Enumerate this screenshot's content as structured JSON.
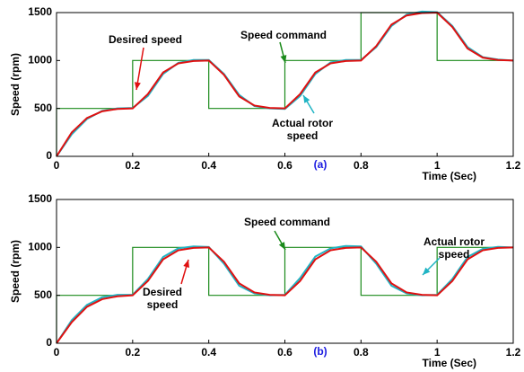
{
  "chart_data": [
    {
      "type": "line",
      "label": "(a)",
      "x_label": "Time (Sec)",
      "y_label": "Speed (rpm)",
      "xlim": [
        0,
        1.2
      ],
      "xticks": [
        0,
        0.2,
        0.4,
        0.6,
        0.8,
        1,
        1.2
      ],
      "ylim": [
        0,
        1500
      ],
      "yticks": [
        0,
        500,
        1000,
        1500
      ],
      "grid": false,
      "series": [
        {
          "name": "Speed command",
          "color": "#1a8a1a",
          "x": [
            0,
            0,
            0.2,
            0.2,
            0.4,
            0.4,
            0.6,
            0.6,
            0.8,
            0.8,
            1,
            1,
            1.2
          ],
          "values": [
            0,
            500,
            500,
            1000,
            1000,
            500,
            500,
            1000,
            1000,
            1500,
            1500,
            1000,
            1000
          ]
        },
        {
          "name": "Desired speed",
          "color": "#e01010",
          "x": [
            0,
            0.04,
            0.08,
            0.12,
            0.16,
            0.2,
            0.24,
            0.28,
            0.32,
            0.36,
            0.4,
            0.44,
            0.48,
            0.52,
            0.56,
            0.6,
            0.64,
            0.68,
            0.72,
            0.76,
            0.8,
            0.84,
            0.88,
            0.92,
            0.96,
            1,
            1.04,
            1.08,
            1.12,
            1.16,
            1.2
          ],
          "values": [
            0,
            250,
            400,
            470,
            495,
            500,
            650,
            875,
            970,
            995,
            1000,
            850,
            625,
            530,
            505,
            500,
            650,
            875,
            970,
            995,
            1000,
            1150,
            1375,
            1470,
            1495,
            1500,
            1350,
            1125,
            1030,
            1005,
            1000
          ]
        },
        {
          "name": "Actual rotor speed",
          "color": "#20b4c4",
          "x": [
            0,
            0.04,
            0.08,
            0.12,
            0.16,
            0.2,
            0.24,
            0.28,
            0.32,
            0.36,
            0.4,
            0.44,
            0.48,
            0.52,
            0.56,
            0.6,
            0.64,
            0.68,
            0.72,
            0.76,
            0.8,
            0.84,
            0.88,
            0.92,
            0.96,
            1,
            1.04,
            1.08,
            1.12,
            1.16,
            1.2
          ],
          "values": [
            0,
            230,
            390,
            475,
            500,
            505,
            630,
            860,
            975,
            1005,
            1005,
            860,
            640,
            525,
            500,
            495,
            630,
            860,
            980,
            1005,
            1005,
            1140,
            1360,
            1480,
            1510,
            1505,
            1360,
            1140,
            1035,
            1010,
            1000
          ]
        }
      ]
    },
    {
      "type": "line",
      "label": "(b)",
      "x_label": "Time (Sec)",
      "y_label": "Speed (rpm)",
      "xlim": [
        0,
        1.2
      ],
      "xticks": [
        0,
        0.2,
        0.4,
        0.6,
        0.8,
        1,
        1.2
      ],
      "ylim": [
        0,
        1500
      ],
      "yticks": [
        0,
        500,
        1000,
        1500
      ],
      "grid": false,
      "series": [
        {
          "name": "Speed command",
          "color": "#1a8a1a",
          "x": [
            0,
            0,
            0.2,
            0.2,
            0.4,
            0.4,
            0.6,
            0.6,
            0.8,
            0.8,
            1,
            1,
            1.2
          ],
          "values": [
            0,
            500,
            500,
            1000,
            1000,
            500,
            500,
            1000,
            1000,
            500,
            500,
            1000,
            1000
          ]
        },
        {
          "name": "Desired speed",
          "color": "#e01010",
          "x": [
            0,
            0.04,
            0.08,
            0.12,
            0.16,
            0.2,
            0.24,
            0.28,
            0.32,
            0.36,
            0.4,
            0.44,
            0.48,
            0.52,
            0.56,
            0.6,
            0.64,
            0.68,
            0.72,
            0.76,
            0.8,
            0.84,
            0.88,
            0.92,
            0.96,
            1,
            1.04,
            1.08,
            1.12,
            1.16,
            1.2
          ],
          "values": [
            0,
            220,
            380,
            460,
            490,
            500,
            650,
            875,
            970,
            995,
            1000,
            850,
            625,
            530,
            505,
            500,
            650,
            875,
            970,
            995,
            1000,
            850,
            625,
            530,
            505,
            500,
            650,
            875,
            970,
            995,
            1000
          ]
        },
        {
          "name": "Actual rotor speed",
          "color": "#20b4c4",
          "x": [
            0,
            0.04,
            0.08,
            0.12,
            0.16,
            0.2,
            0.24,
            0.28,
            0.32,
            0.36,
            0.4,
            0.44,
            0.48,
            0.52,
            0.56,
            0.6,
            0.64,
            0.68,
            0.72,
            0.76,
            0.8,
            0.84,
            0.88,
            0.92,
            0.96,
            1,
            1.04,
            1.08,
            1.12,
            1.16,
            1.2
          ],
          "values": [
            0,
            240,
            400,
            480,
            505,
            505,
            670,
            900,
            990,
            1010,
            1005,
            830,
            600,
            520,
            500,
            505,
            680,
            905,
            990,
            1015,
            1010,
            830,
            600,
            520,
            500,
            505,
            670,
            900,
            985,
            1005,
            1000
          ]
        }
      ]
    }
  ]
}
